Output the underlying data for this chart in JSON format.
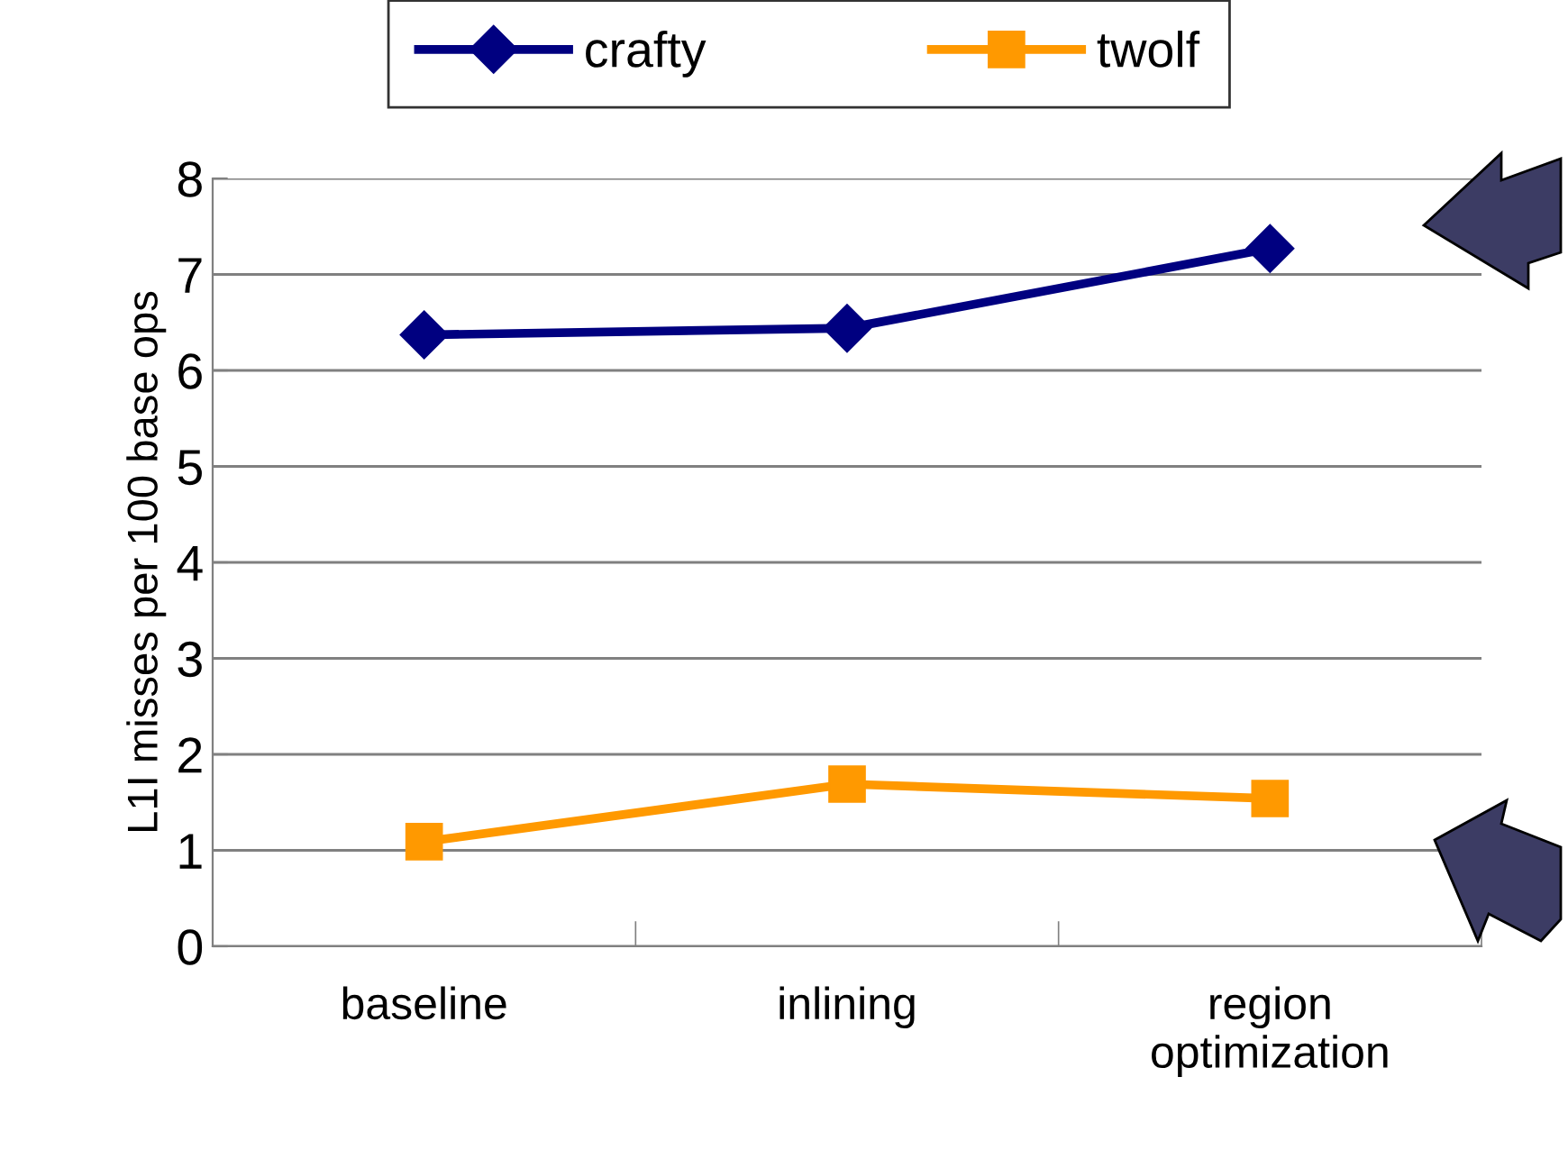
{
  "chart_data": {
    "type": "line",
    "ylabel": "L1I misses per 100 base ops",
    "categories": [
      "baseline",
      "inlining",
      "region\noptimization"
    ],
    "series": [
      {
        "name": "crafty",
        "color": "#000080",
        "values": [
          6.37,
          6.44,
          7.27
        ],
        "marker": "diamond"
      },
      {
        "name": "twolf",
        "color": "#ff9900",
        "values": [
          1.09,
          1.69,
          1.54
        ],
        "marker": "square"
      }
    ],
    "ylim": [
      0,
      8
    ],
    "yticks": [
      0,
      1,
      2,
      3,
      4,
      5,
      6,
      7,
      8
    ],
    "grid": "y",
    "legend": "top",
    "line_style": "solid"
  }
}
